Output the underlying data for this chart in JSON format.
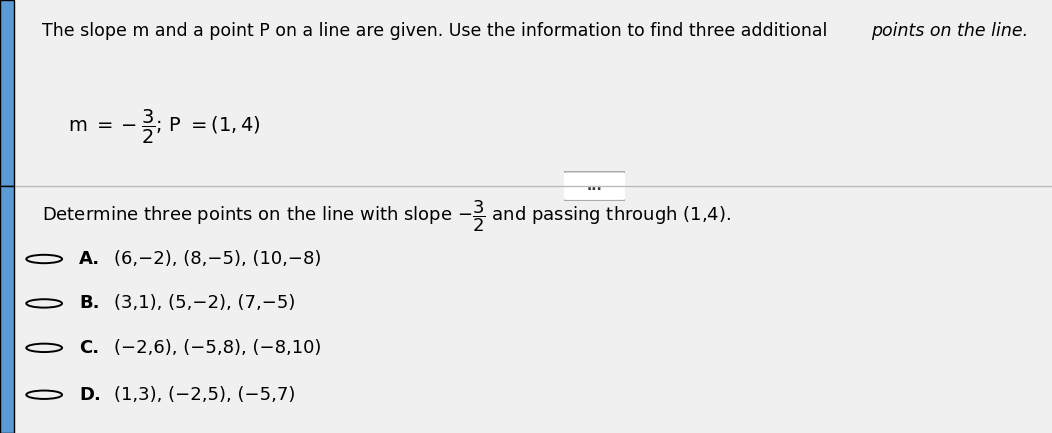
{
  "bg_color": "#f0f0f0",
  "top_panel_bg": "#ffffff",
  "bottom_panel_bg": "#ffffff",
  "title_normal": "The slope m and a point P on a line are given. Use the information to find three additional ",
  "title_italic": "points on the line.",
  "formula_line": "m $= -\\dfrac{3}{2}$; P $= (1,4)$",
  "divider_dots": "...",
  "question_text": "Determine three points on the line with slope $-\\dfrac{3}{2}$ and passing through (1,4).",
  "options": [
    {
      "label": "A.",
      "text": "(6,−2), (8,−5), (10,−8)"
    },
    {
      "label": "B.",
      "text": "(3,1), (5,−2), (7,−5)"
    },
    {
      "label": "C.",
      "text": "(−2,6), (−5,8), (−8,10)"
    },
    {
      "label": "D.",
      "text": "(1,3), (−2,5), (−5,7)"
    }
  ],
  "left_bar_color": "#5b9bd5",
  "divider_color": "#bbbbbb",
  "btn_edge_color": "#aaaaaa",
  "btn_text_color": "#333333",
  "option_label_fontsize": 13,
  "option_text_fontsize": 13,
  "title_fontsize": 12.5,
  "formula_fontsize": 14,
  "question_fontsize": 13
}
